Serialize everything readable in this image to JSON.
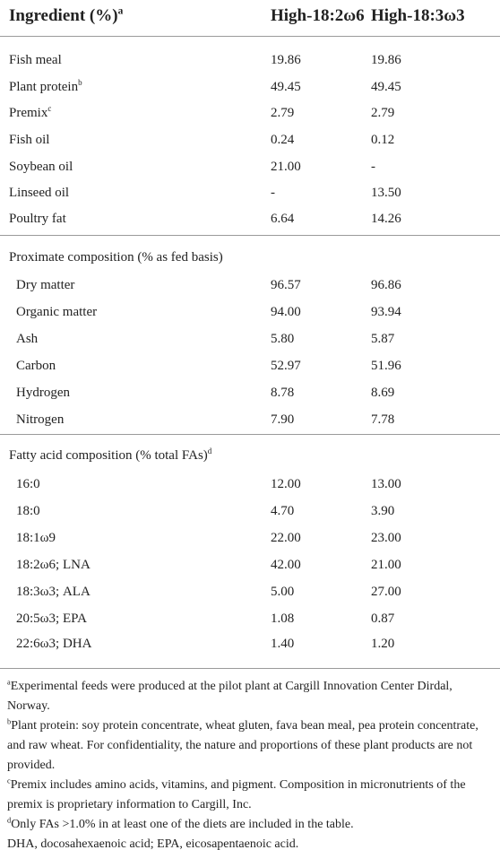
{
  "table": {
    "header": [
      {
        "text": "Ingredient (%)",
        "note": "a"
      },
      {
        "text": "High-18:2ω6"
      },
      {
        "text": "High-18:3ω3"
      }
    ],
    "ingredients": [
      {
        "label": "Fish meal",
        "values": [
          "19.86",
          "19.86"
        ]
      },
      {
        "label": "Plant protein",
        "note": "b",
        "values": [
          "49.45",
          "49.45"
        ]
      },
      {
        "label": "Premix",
        "note": "c",
        "values": [
          "2.79",
          "2.79"
        ]
      },
      {
        "label": "Fish oil",
        "values": [
          "0.24",
          "0.12"
        ]
      },
      {
        "label": "Soybean oil",
        "values": [
          "21.00",
          "-"
        ]
      },
      {
        "label": "Linseed oil",
        "values": [
          "-",
          "13.50"
        ]
      },
      {
        "label": "Poultry fat",
        "values": [
          "6.64",
          "14.26"
        ]
      }
    ],
    "sections": [
      {
        "title": "Proximate composition (% as fed basis)",
        "rows": [
          {
            "label": "Dry matter",
            "values": [
              "96.57",
              "96.86"
            ]
          },
          {
            "label": "Organic matter",
            "values": [
              "94.00",
              "93.94"
            ]
          },
          {
            "label": "Ash",
            "values": [
              "5.80",
              "5.87"
            ]
          },
          {
            "label": "Carbon",
            "values": [
              "52.97",
              "51.96"
            ]
          },
          {
            "label": "Hydrogen",
            "values": [
              "8.78",
              "8.69"
            ]
          },
          {
            "label": "Nitrogen",
            "values": [
              "7.90",
              "7.78"
            ]
          }
        ]
      },
      {
        "title": "Fatty acid composition (% total FAs)",
        "note": "d",
        "rows": [
          {
            "label": "16:0",
            "values": [
              "12.00",
              "13.00"
            ]
          },
          {
            "label": "18:0",
            "values": [
              "4.70",
              "3.90"
            ]
          },
          {
            "label": "18:1ω9",
            "values": [
              "22.00",
              "23.00"
            ]
          },
          {
            "label": "18:2ω6; LNA",
            "values": [
              "42.00",
              "21.00"
            ]
          },
          {
            "label": "18:3ω3; ALA",
            "values": [
              "5.00",
              "27.00"
            ]
          },
          {
            "label": "20:5ω3; EPA",
            "values": [
              "1.08",
              "0.87"
            ]
          },
          {
            "label": "22:6ω3; DHA",
            "values": [
              "1.40",
              "1.20"
            ]
          }
        ]
      }
    ],
    "footnotes": [
      {
        "note": "a",
        "text": "Experimental feeds were produced at the pilot plant at Cargill Innovation Center Dirdal, Norway."
      },
      {
        "note": "b",
        "text": "Plant protein: soy protein concentrate, wheat gluten, fava bean meal, pea protein concentrate, and raw wheat. For confidentiality, the nature and proportions of these plant products are not provided."
      },
      {
        "note": "c",
        "text": "Premix includes amino acids, vitamins, and pigment. Composition in micronutrients of the premix is proprietary information to Cargill, Inc."
      },
      {
        "note": "d",
        "text": "Only FAs >1.0% in at least one of the diets are included in the table."
      },
      {
        "text": "DHA, docosahexaenoic acid; EPA, eicosapentaenoic acid."
      }
    ]
  }
}
